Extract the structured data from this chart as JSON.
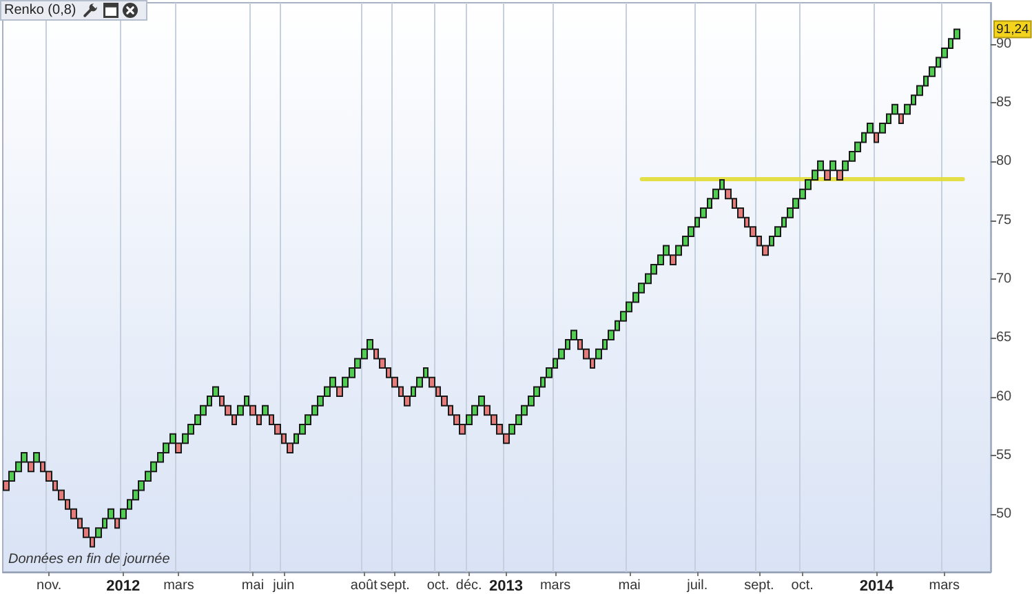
{
  "chart_data": {
    "type": "candlestick",
    "title": "Renko (0,8)",
    "categories": [
      null,
      null,
      null,
      null,
      null,
      null,
      null,
      "nov.",
      null,
      null,
      null,
      null,
      null,
      null,
      null,
      null,
      null,
      null,
      null,
      "2012",
      null,
      null,
      null,
      null,
      null,
      null,
      null,
      null,
      "mars",
      null,
      null,
      null,
      null,
      null,
      null,
      null,
      null,
      null,
      null,
      null,
      "mai",
      null,
      null,
      null,
      null,
      "juin",
      null,
      null,
      null,
      null,
      null,
      null,
      null,
      null,
      null,
      null,
      null,
      null,
      "août",
      null,
      null,
      null,
      null,
      "sept.",
      null,
      null,
      null,
      null,
      null,
      null,
      "oct.",
      null,
      null,
      null,
      null,
      "déc.",
      null,
      null,
      null,
      null,
      null,
      "2013",
      null,
      null,
      null,
      null,
      null,
      null,
      null,
      "mars",
      null,
      null,
      null,
      null,
      null,
      null,
      null,
      null,
      null,
      null,
      null,
      "mai",
      null,
      null,
      null,
      null,
      null,
      null,
      null,
      null,
      null,
      null,
      "juil.",
      null,
      null,
      null,
      null,
      null,
      null,
      null,
      null,
      null,
      "sept.",
      null,
      null,
      null,
      null,
      null,
      null,
      "oct.",
      null,
      null,
      null,
      null,
      null,
      null,
      null,
      null,
      null,
      null,
      null,
      "2014",
      null,
      null,
      null,
      null,
      null,
      null,
      null,
      null,
      null,
      null,
      "mars",
      null,
      null,
      null,
      null,
      null,
      null,
      null
    ],
    "series": [
      {
        "type": "candlestick",
        "ohlc": [
          [
            52.84,
            52.84,
            52.04,
            52.04
          ],
          [
            52.84,
            53.64,
            52.84,
            53.64
          ],
          [
            53.64,
            54.44,
            53.64,
            54.44
          ],
          [
            54.44,
            55.24,
            54.44,
            55.24
          ],
          [
            54.44,
            54.44,
            53.64,
            53.64
          ],
          [
            54.44,
            55.24,
            54.44,
            55.24
          ],
          [
            54.44,
            54.44,
            53.64,
            53.64
          ],
          [
            53.64,
            53.64,
            52.84,
            52.84
          ],
          [
            52.84,
            52.84,
            52.04,
            52.04
          ],
          [
            52.04,
            52.04,
            51.24,
            51.24
          ],
          [
            51.24,
            51.24,
            50.44,
            50.44
          ],
          [
            50.44,
            50.44,
            49.64,
            49.64
          ],
          [
            49.64,
            49.64,
            48.84,
            48.84
          ],
          [
            48.84,
            48.84,
            48.04,
            48.04
          ],
          [
            48.04,
            48.04,
            47.24,
            47.24
          ],
          [
            48.04,
            48.84,
            48.04,
            48.84
          ],
          [
            48.84,
            49.64,
            48.84,
            49.64
          ],
          [
            49.64,
            50.44,
            49.64,
            50.44
          ],
          [
            49.64,
            49.64,
            48.84,
            48.84
          ],
          [
            49.64,
            50.44,
            49.64,
            50.44
          ],
          [
            50.44,
            51.24,
            50.44,
            51.24
          ],
          [
            51.24,
            52.04,
            51.24,
            52.04
          ],
          [
            52.04,
            52.84,
            52.04,
            52.84
          ],
          [
            52.84,
            53.64,
            52.84,
            53.64
          ],
          [
            53.64,
            54.44,
            53.64,
            54.44
          ],
          [
            54.44,
            55.24,
            54.44,
            55.24
          ],
          [
            55.24,
            56.04,
            55.24,
            56.04
          ],
          [
            56.04,
            56.84,
            56.04,
            56.84
          ],
          [
            56.04,
            56.04,
            55.24,
            55.24
          ],
          [
            56.04,
            56.84,
            56.04,
            56.84
          ],
          [
            56.84,
            57.64,
            56.84,
            57.64
          ],
          [
            57.64,
            58.44,
            57.64,
            58.44
          ],
          [
            58.44,
            59.24,
            58.44,
            59.24
          ],
          [
            59.24,
            60.04,
            59.24,
            60.04
          ],
          [
            60.04,
            60.84,
            60.04,
            60.84
          ],
          [
            60.04,
            60.04,
            59.24,
            59.24
          ],
          [
            59.24,
            59.24,
            58.44,
            58.44
          ],
          [
            58.44,
            58.44,
            57.64,
            57.64
          ],
          [
            58.44,
            59.24,
            58.44,
            59.24
          ],
          [
            59.24,
            60.04,
            59.24,
            60.04
          ],
          [
            59.24,
            59.24,
            58.44,
            58.44
          ],
          [
            58.44,
            58.44,
            57.64,
            57.64
          ],
          [
            58.44,
            59.24,
            58.44,
            59.24
          ],
          [
            58.44,
            58.44,
            57.64,
            57.64
          ],
          [
            57.64,
            57.64,
            56.84,
            56.84
          ],
          [
            56.84,
            56.84,
            56.04,
            56.04
          ],
          [
            56.04,
            56.04,
            55.24,
            55.24
          ],
          [
            56.04,
            56.84,
            56.04,
            56.84
          ],
          [
            56.84,
            57.64,
            56.84,
            57.64
          ],
          [
            57.64,
            58.44,
            57.64,
            58.44
          ],
          [
            58.44,
            59.24,
            58.44,
            59.24
          ],
          [
            59.24,
            60.04,
            59.24,
            60.04
          ],
          [
            60.04,
            60.84,
            60.04,
            60.84
          ],
          [
            60.84,
            61.64,
            60.84,
            61.64
          ],
          [
            60.84,
            60.84,
            60.04,
            60.04
          ],
          [
            60.84,
            61.64,
            60.84,
            61.64
          ],
          [
            61.64,
            62.44,
            61.64,
            62.44
          ],
          [
            62.44,
            63.24,
            62.44,
            63.24
          ],
          [
            63.24,
            64.04,
            63.24,
            64.04
          ],
          [
            64.04,
            64.84,
            64.04,
            64.84
          ],
          [
            64.04,
            64.04,
            63.24,
            63.24
          ],
          [
            63.24,
            63.24,
            62.44,
            62.44
          ],
          [
            62.44,
            62.44,
            61.64,
            61.64
          ],
          [
            61.64,
            61.64,
            60.84,
            60.84
          ],
          [
            60.84,
            60.84,
            60.04,
            60.04
          ],
          [
            60.04,
            60.04,
            59.24,
            59.24
          ],
          [
            60.04,
            60.84,
            60.04,
            60.84
          ],
          [
            60.84,
            61.64,
            60.84,
            61.64
          ],
          [
            61.64,
            62.44,
            61.64,
            62.44
          ],
          [
            61.64,
            61.64,
            60.84,
            60.84
          ],
          [
            60.84,
            60.84,
            60.04,
            60.04
          ],
          [
            60.04,
            60.04,
            59.24,
            59.24
          ],
          [
            59.24,
            59.24,
            58.44,
            58.44
          ],
          [
            58.44,
            58.44,
            57.64,
            57.64
          ],
          [
            57.64,
            57.64,
            56.84,
            56.84
          ],
          [
            57.64,
            58.44,
            57.64,
            58.44
          ],
          [
            58.44,
            59.24,
            58.44,
            59.24
          ],
          [
            59.24,
            60.04,
            59.24,
            60.04
          ],
          [
            59.24,
            59.24,
            58.44,
            58.44
          ],
          [
            58.44,
            58.44,
            57.64,
            57.64
          ],
          [
            57.64,
            57.64,
            56.84,
            56.84
          ],
          [
            56.84,
            56.84,
            56.04,
            56.04
          ],
          [
            56.84,
            57.64,
            56.84,
            57.64
          ],
          [
            57.64,
            58.44,
            57.64,
            58.44
          ],
          [
            58.44,
            59.24,
            58.44,
            59.24
          ],
          [
            59.24,
            60.04,
            59.24,
            60.04
          ],
          [
            60.04,
            60.84,
            60.04,
            60.84
          ],
          [
            60.84,
            61.64,
            60.84,
            61.64
          ],
          [
            61.64,
            62.44,
            61.64,
            62.44
          ],
          [
            62.44,
            63.24,
            62.44,
            63.24
          ],
          [
            63.24,
            64.04,
            63.24,
            64.04
          ],
          [
            64.04,
            64.84,
            64.04,
            64.84
          ],
          [
            64.84,
            65.64,
            64.84,
            65.64
          ],
          [
            64.84,
            64.84,
            64.04,
            64.04
          ],
          [
            64.04,
            64.04,
            63.24,
            63.24
          ],
          [
            63.24,
            63.24,
            62.44,
            62.44
          ],
          [
            63.24,
            64.04,
            63.24,
            64.04
          ],
          [
            64.04,
            64.84,
            64.04,
            64.84
          ],
          [
            64.84,
            65.64,
            64.84,
            65.64
          ],
          [
            65.64,
            66.44,
            65.64,
            66.44
          ],
          [
            66.44,
            67.24,
            66.44,
            67.24
          ],
          [
            67.24,
            68.04,
            67.24,
            68.04
          ],
          [
            68.04,
            68.84,
            68.04,
            68.84
          ],
          [
            68.84,
            69.64,
            68.84,
            69.64
          ],
          [
            69.64,
            70.44,
            69.64,
            70.44
          ],
          [
            70.44,
            71.24,
            70.44,
            71.24
          ],
          [
            71.24,
            72.04,
            71.24,
            72.04
          ],
          [
            72.04,
            72.84,
            72.04,
            72.84
          ],
          [
            72.04,
            72.04,
            71.24,
            71.24
          ],
          [
            72.04,
            72.84,
            72.04,
            72.84
          ],
          [
            72.84,
            73.64,
            72.84,
            73.64
          ],
          [
            73.64,
            74.44,
            73.64,
            74.44
          ],
          [
            74.44,
            75.24,
            74.44,
            75.24
          ],
          [
            75.24,
            76.04,
            75.24,
            76.04
          ],
          [
            76.04,
            76.84,
            76.04,
            76.84
          ],
          [
            76.84,
            77.64,
            76.84,
            77.64
          ],
          [
            77.64,
            78.44,
            77.64,
            78.44
          ],
          [
            77.64,
            77.64,
            76.84,
            76.84
          ],
          [
            76.84,
            76.84,
            76.04,
            76.04
          ],
          [
            76.04,
            76.04,
            75.24,
            75.24
          ],
          [
            75.24,
            75.24,
            74.44,
            74.44
          ],
          [
            74.44,
            74.44,
            73.64,
            73.64
          ],
          [
            73.64,
            73.64,
            72.84,
            72.84
          ],
          [
            72.84,
            72.84,
            72.04,
            72.04
          ],
          [
            72.84,
            73.64,
            72.84,
            73.64
          ],
          [
            73.64,
            74.44,
            73.64,
            74.44
          ],
          [
            74.44,
            75.24,
            74.44,
            75.24
          ],
          [
            75.24,
            76.04,
            75.24,
            76.04
          ],
          [
            76.04,
            76.84,
            76.04,
            76.84
          ],
          [
            76.84,
            77.64,
            76.84,
            77.64
          ],
          [
            77.64,
            78.44,
            77.64,
            78.44
          ],
          [
            78.44,
            79.24,
            78.44,
            79.24
          ],
          [
            79.24,
            80.04,
            79.24,
            80.04
          ],
          [
            79.24,
            79.24,
            78.44,
            78.44
          ],
          [
            79.24,
            80.04,
            79.24,
            80.04
          ],
          [
            79.24,
            79.24,
            78.44,
            78.44
          ],
          [
            79.24,
            80.04,
            79.24,
            80.04
          ],
          [
            80.04,
            80.84,
            80.04,
            80.84
          ],
          [
            80.84,
            81.64,
            80.84,
            81.64
          ],
          [
            81.64,
            82.44,
            81.64,
            82.44
          ],
          [
            82.44,
            83.24,
            82.44,
            83.24
          ],
          [
            82.44,
            82.44,
            81.64,
            81.64
          ],
          [
            82.44,
            83.24,
            82.44,
            83.24
          ],
          [
            83.24,
            84.04,
            83.24,
            84.04
          ],
          [
            84.04,
            84.84,
            84.04,
            84.84
          ],
          [
            84.04,
            84.04,
            83.24,
            83.24
          ],
          [
            84.04,
            84.84,
            84.04,
            84.84
          ],
          [
            84.84,
            85.64,
            84.84,
            85.64
          ],
          [
            85.64,
            86.44,
            85.64,
            86.44
          ],
          [
            86.44,
            87.24,
            86.44,
            87.24
          ],
          [
            87.24,
            88.04,
            87.24,
            88.04
          ],
          [
            88.04,
            88.84,
            88.04,
            88.84
          ],
          [
            88.84,
            89.64,
            88.84,
            89.64
          ],
          [
            89.64,
            90.44,
            89.64,
            90.44
          ],
          [
            90.44,
            91.24,
            90.44,
            91.24
          ],
          null,
          null,
          null,
          null,
          null
        ],
        "colors": [
          "#e57c7c",
          "#52cc52",
          "#52cc52",
          "#52cc52",
          "#e57c7c",
          "#52cc52",
          "#e57c7c",
          "#e57c7c",
          "#e57c7c",
          "#e57c7c",
          "#e57c7c",
          "#e57c7c",
          "#e57c7c",
          "#e57c7c",
          "#e57c7c",
          "#52cc52",
          "#52cc52",
          "#52cc52",
          "#e57c7c",
          "#52cc52",
          "#52cc52",
          "#52cc52",
          "#52cc52",
          "#52cc52",
          "#52cc52",
          "#52cc52",
          "#52cc52",
          "#52cc52",
          "#e57c7c",
          "#52cc52",
          "#52cc52",
          "#52cc52",
          "#52cc52",
          "#52cc52",
          "#52cc52",
          "#e57c7c",
          "#e57c7c",
          "#e57c7c",
          "#52cc52",
          "#52cc52",
          "#e57c7c",
          "#e57c7c",
          "#52cc52",
          "#e57c7c",
          "#e57c7c",
          "#e57c7c",
          "#e57c7c",
          "#52cc52",
          "#52cc52",
          "#52cc52",
          "#52cc52",
          "#52cc52",
          "#52cc52",
          "#52cc52",
          "#e57c7c",
          "#52cc52",
          "#52cc52",
          "#52cc52",
          "#52cc52",
          "#52cc52",
          "#e57c7c",
          "#e57c7c",
          "#e57c7c",
          "#e57c7c",
          "#e57c7c",
          "#e57c7c",
          "#52cc52",
          "#52cc52",
          "#52cc52",
          "#e57c7c",
          "#e57c7c",
          "#e57c7c",
          "#e57c7c",
          "#e57c7c",
          "#e57c7c",
          "#52cc52",
          "#52cc52",
          "#52cc52",
          "#e57c7c",
          "#e57c7c",
          "#e57c7c",
          "#e57c7c",
          "#52cc52",
          "#52cc52",
          "#52cc52",
          "#52cc52",
          "#52cc52",
          "#52cc52",
          "#52cc52",
          "#52cc52",
          "#52cc52",
          "#52cc52",
          "#52cc52",
          "#e57c7c",
          "#e57c7c",
          "#e57c7c",
          "#52cc52",
          "#52cc52",
          "#52cc52",
          "#52cc52",
          "#52cc52",
          "#52cc52",
          "#52cc52",
          "#52cc52",
          "#52cc52",
          "#52cc52",
          "#52cc52",
          "#52cc52",
          "#e57c7c",
          "#52cc52",
          "#52cc52",
          "#52cc52",
          "#52cc52",
          "#52cc52",
          "#52cc52",
          "#52cc52",
          "#52cc52",
          "#e57c7c",
          "#e57c7c",
          "#e57c7c",
          "#e57c7c",
          "#e57c7c",
          "#e57c7c",
          "#e57c7c",
          "#52cc52",
          "#52cc52",
          "#52cc52",
          "#52cc52",
          "#52cc52",
          "#52cc52",
          "#52cc52",
          "#52cc52",
          "#52cc52",
          "#e57c7c",
          "#52cc52",
          "#e57c7c",
          "#52cc52",
          "#52cc52",
          "#52cc52",
          "#52cc52",
          "#52cc52",
          "#e57c7c",
          "#52cc52",
          "#52cc52",
          "#52cc52",
          "#e57c7c",
          "#52cc52",
          "#52cc52",
          "#52cc52",
          "#52cc52",
          "#52cc52",
          "#52cc52",
          "#52cc52",
          "#52cc52",
          "#52cc52",
          null,
          null,
          null,
          null,
          null
        ]
      },
      {
        "type": "line",
        "color": "#e2dc3a",
        "values": [
          null,
          null,
          null,
          null,
          null,
          null,
          null,
          null,
          null,
          null,
          null,
          null,
          null,
          null,
          null,
          null,
          null,
          null,
          null,
          null,
          null,
          null,
          null,
          null,
          null,
          null,
          null,
          null,
          null,
          null,
          null,
          null,
          null,
          null,
          null,
          null,
          null,
          null,
          null,
          null,
          null,
          null,
          null,
          null,
          null,
          null,
          null,
          null,
          null,
          null,
          null,
          null,
          null,
          null,
          null,
          null,
          null,
          null,
          null,
          null,
          null,
          null,
          null,
          null,
          null,
          null,
          null,
          null,
          null,
          null,
          null,
          null,
          null,
          null,
          null,
          null,
          null,
          null,
          null,
          null,
          null,
          null,
          null,
          null,
          null,
          null,
          null,
          null,
          null,
          null,
          null,
          null,
          null,
          null,
          null,
          null,
          null,
          null,
          null,
          null,
          null,
          null,
          null,
          78.5,
          78.5,
          78.5,
          78.5,
          78.5,
          78.5,
          78.5,
          78.5,
          78.5,
          78.5,
          78.5,
          78.5,
          78.5,
          78.5,
          78.5,
          78.5,
          78.5,
          78.5,
          78.5,
          78.5,
          78.5,
          78.5,
          78.5,
          78.5,
          78.5,
          78.5,
          78.5,
          78.5,
          78.5,
          78.5,
          78.5,
          78.5,
          78.5,
          78.5,
          78.5,
          78.5,
          78.5,
          78.5,
          78.5,
          78.5,
          78.5,
          78.5,
          78.5,
          78.5,
          78.5,
          78.5,
          78.5,
          78.5,
          78.5,
          78.5,
          78.5,
          78.5,
          78.5,
          null,
          null,
          null,
          null
        ]
      }
    ],
    "ylim": [
      45.1,
      93.5
    ],
    "yticks": [
      50,
      55,
      60,
      65,
      70,
      75,
      80,
      85,
      90
    ],
    "grid": "x",
    "annotations": [
      {
        "text": "91,24",
        "y": 91.24
      },
      "Données en fin de journée"
    ]
  }
}
